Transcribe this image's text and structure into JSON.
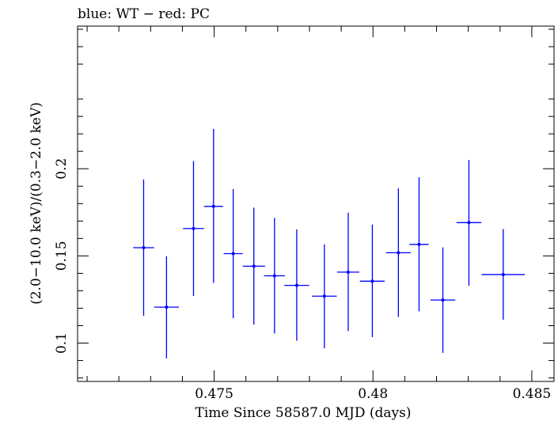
{
  "chart_data": {
    "type": "scatter",
    "title": "blue: WT − red: PC",
    "xlabel": "Time Since 58587.0 MJD (days)",
    "ylabel": "(2.0−10.0 keV)/(0.3−2.0 keV)",
    "xlim": [
      0.4707,
      0.4857
    ],
    "ylim": [
      0.078,
      0.2818
    ],
    "x_ticks": [
      0.475,
      0.48,
      0.485
    ],
    "x_tick_labels": [
      "0.475",
      "0.48",
      "0.485"
    ],
    "y_ticks": [
      0.1,
      0.15,
      0.2
    ],
    "y_tick_labels": [
      "0.1",
      "0.15",
      "0.2"
    ],
    "grid": false,
    "series": [
      {
        "color": "#0000ff",
        "points": [
          {
            "x": 0.47278,
            "y": 0.1547,
            "xerr": 0.00033,
            "ylo": 0.1157,
            "yhi": 0.1938
          },
          {
            "x": 0.4735,
            "y": 0.1206,
            "xerr": 0.00039,
            "ylo": 0.0913,
            "yhi": 0.1498
          },
          {
            "x": 0.47435,
            "y": 0.1657,
            "xerr": 0.00033,
            "ylo": 0.127,
            "yhi": 0.2044
          },
          {
            "x": 0.47498,
            "y": 0.1784,
            "xerr": 0.0003,
            "ylo": 0.1345,
            "yhi": 0.2228
          },
          {
            "x": 0.4756,
            "y": 0.1513,
            "xerr": 0.0003,
            "ylo": 0.1143,
            "yhi": 0.1883
          },
          {
            "x": 0.47625,
            "y": 0.1441,
            "xerr": 0.00035,
            "ylo": 0.1106,
            "yhi": 0.1777
          },
          {
            "x": 0.4769,
            "y": 0.1386,
            "xerr": 0.00033,
            "ylo": 0.1055,
            "yhi": 0.1718
          },
          {
            "x": 0.4776,
            "y": 0.1331,
            "xerr": 0.00039,
            "ylo": 0.1014,
            "yhi": 0.1652
          },
          {
            "x": 0.47847,
            "y": 0.1269,
            "xerr": 0.00039,
            "ylo": 0.097,
            "yhi": 0.1566
          },
          {
            "x": 0.47922,
            "y": 0.1407,
            "xerr": 0.00035,
            "ylo": 0.1069,
            "yhi": 0.1748
          },
          {
            "x": 0.47998,
            "y": 0.1355,
            "xerr": 0.00039,
            "ylo": 0.1034,
            "yhi": 0.168
          },
          {
            "x": 0.4808,
            "y": 0.1518,
            "xerr": 0.00039,
            "ylo": 0.115,
            "yhi": 0.1887
          },
          {
            "x": 0.48145,
            "y": 0.1566,
            "xerr": 0.0003,
            "ylo": 0.1182,
            "yhi": 0.1951
          },
          {
            "x": 0.4822,
            "y": 0.1247,
            "xerr": 0.00039,
            "ylo": 0.0944,
            "yhi": 0.1549
          },
          {
            "x": 0.48302,
            "y": 0.1691,
            "xerr": 0.00039,
            "ylo": 0.1329,
            "yhi": 0.2051
          },
          {
            "x": 0.4841,
            "y": 0.1393,
            "xerr": 0.00068,
            "ylo": 0.1134,
            "yhi": 0.1654
          }
        ]
      }
    ]
  }
}
